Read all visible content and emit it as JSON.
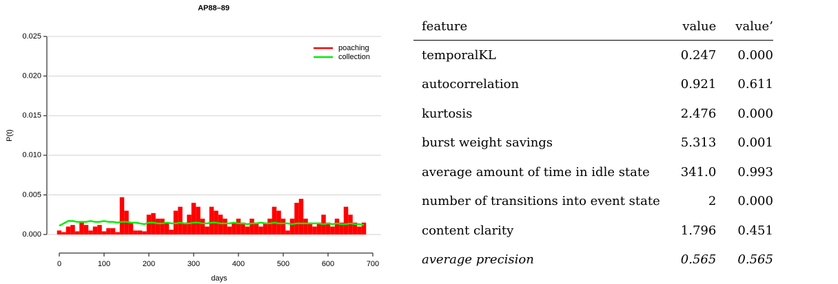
{
  "chart_data": {
    "type": "bar",
    "title": "AP88–89",
    "x_label": "days",
    "y_label": "P(t)",
    "x": [
      0,
      10,
      20,
      30,
      40,
      50,
      60,
      70,
      80,
      90,
      100,
      110,
      120,
      130,
      140,
      150,
      160,
      170,
      180,
      190,
      200,
      210,
      220,
      230,
      240,
      250,
      260,
      270,
      280,
      290,
      300,
      310,
      320,
      330,
      340,
      350,
      360,
      370,
      380,
      390,
      400,
      410,
      420,
      430,
      440,
      450,
      460,
      470,
      480,
      490,
      500,
      510,
      520,
      530,
      540,
      550,
      560,
      570,
      580,
      590,
      600,
      610,
      620,
      630,
      640,
      650,
      660,
      670,
      680
    ],
    "series": [
      {
        "name": "poaching",
        "color": "#ff0000",
        "values": [
          0.0005,
          0.0003,
          0.001,
          0.0012,
          0.0004,
          0.0015,
          0.0012,
          0.0005,
          0.001,
          0.0012,
          0.0004,
          0.0008,
          0.0008,
          0.0003,
          0.0047,
          0.003,
          0.0015,
          0.0005,
          0.0005,
          0.0004,
          0.0025,
          0.0027,
          0.002,
          0.002,
          0.0015,
          0.0006,
          0.003,
          0.0035,
          0.0015,
          0.0025,
          0.004,
          0.0035,
          0.002,
          0.001,
          0.0035,
          0.003,
          0.0025,
          0.002,
          0.001,
          0.0015,
          0.002,
          0.0015,
          0.001,
          0.002,
          0.0015,
          0.001,
          0.0015,
          0.002,
          0.0035,
          0.003,
          0.002,
          0.0005,
          0.002,
          0.004,
          0.0045,
          0.002,
          0.0015,
          0.001,
          0.0015,
          0.0025,
          0.0015,
          0.001,
          0.002,
          0.0015,
          0.0035,
          0.0025,
          0.0015,
          0.001,
          0.0015
        ]
      },
      {
        "name": "collection",
        "color": "#00ee00",
        "values": [
          0.0011,
          0.0014,
          0.0017,
          0.0017,
          0.0016,
          0.0016,
          0.0016,
          0.0017,
          0.0016,
          0.0016,
          0.0017,
          0.0016,
          0.0016,
          0.0015,
          0.0016,
          0.0016,
          0.0015,
          0.0015,
          0.0014,
          0.0013,
          0.0015,
          0.0015,
          0.0014,
          0.0014,
          0.0015,
          0.0014,
          0.0014,
          0.0015,
          0.0014,
          0.0014,
          0.0015,
          0.0015,
          0.0014,
          0.0014,
          0.0015,
          0.0015,
          0.0014,
          0.0014,
          0.0014,
          0.0015,
          0.0014,
          0.0014,
          0.0013,
          0.0014,
          0.0014,
          0.0015,
          0.0014,
          0.0014,
          0.0015,
          0.0014,
          0.0014,
          0.0014,
          0.0013,
          0.0014,
          0.0014,
          0.0014,
          0.0014,
          0.0014,
          0.0014,
          0.0013,
          0.0014,
          0.0013,
          0.0014,
          0.0013,
          0.0013,
          0.0014,
          0.0013,
          0.0013,
          0.0012
        ]
      }
    ],
    "xlim": [
      0,
      700
    ],
    "xticks": [
      0,
      100,
      200,
      300,
      400,
      500,
      600,
      700
    ],
    "ylim": [
      0,
      0.025
    ],
    "yticks": [
      {
        "value": 0,
        "label": "0.000"
      },
      0.005,
      {
        "value": 0.01,
        "label": "0.010"
      },
      0.015,
      {
        "value": 0.02,
        "label": "0.020"
      },
      0.025
    ],
    "grid": true,
    "legend": "upper right"
  },
  "table": {
    "header": [
      "feature",
      "value",
      "value’"
    ],
    "rows": [
      [
        "temporalKL",
        "0.247",
        "0.000"
      ],
      [
        "autocorrelation",
        "0.921",
        "0.611"
      ],
      [
        "kurtosis",
        "2.476",
        "0.000"
      ],
      [
        "burst weight savings",
        "5.313",
        "0.001"
      ],
      [
        "average amount of time in idle state",
        "341.0",
        "0.993"
      ],
      [
        "number of transitions into event state",
        "2",
        "0.000"
      ],
      [
        "content clarity",
        "1.796",
        "0.451"
      ],
      [
        "average precision",
        "0.565",
        "0.565"
      ]
    ]
  }
}
